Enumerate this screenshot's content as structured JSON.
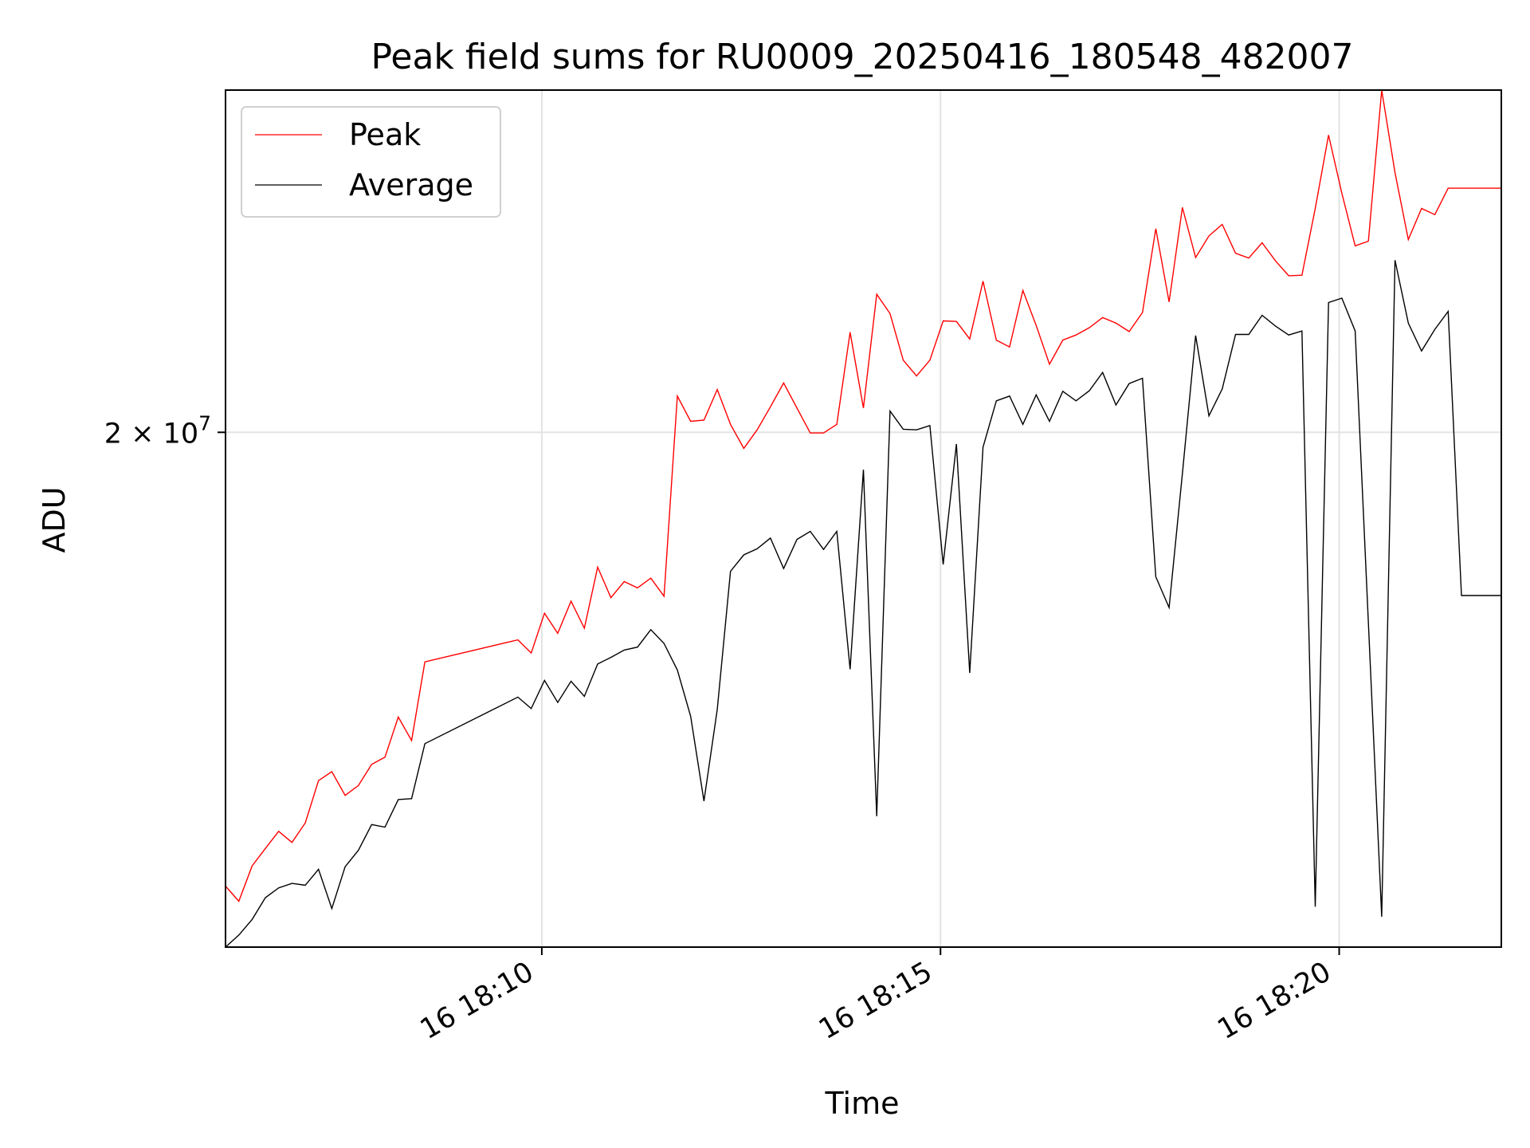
{
  "chart_data": {
    "type": "line",
    "title": "Peak field sums for RU0009_20250416_180548_482007",
    "xlabel": "Time",
    "ylabel": "ADU",
    "x_scale": "time",
    "y_scale": "log",
    "xlim": [
      "18:06:02",
      "18:22:02"
    ],
    "ylim": [
      13150000,
      26430000
    ],
    "x_ticks": [
      "16 18:10",
      "16 18:15",
      "16 18:20"
    ],
    "y_ticks": [
      {
        "value": 20000000,
        "base": "2 × 10",
        "exp": "7"
      }
    ],
    "grid": true,
    "legend": {
      "position": "top-left",
      "entries": [
        "Peak",
        "Average"
      ]
    },
    "series": [
      {
        "name": "Peak",
        "color": "#ff0000",
        "points": [
          [
            "18:06:02",
            13820000
          ],
          [
            "18:06:12",
            13650000
          ],
          [
            "18:06:22",
            14050000
          ],
          [
            "18:06:32",
            14250000
          ],
          [
            "18:06:42",
            14450000
          ],
          [
            "18:06:52",
            14320000
          ],
          [
            "18:07:02",
            14550000
          ],
          [
            "18:07:12",
            15060000
          ],
          [
            "18:07:22",
            15170000
          ],
          [
            "18:07:32",
            14880000
          ],
          [
            "18:07:42",
            15000000
          ],
          [
            "18:07:52",
            15260000
          ],
          [
            "18:08:02",
            15350000
          ],
          [
            "18:08:12",
            15860000
          ],
          [
            "18:08:22",
            15560000
          ],
          [
            "18:08:32",
            16590000
          ],
          [
            "18:09:42",
            16890000
          ],
          [
            "18:09:52",
            16710000
          ],
          [
            "18:10:02",
            17260000
          ],
          [
            "18:10:12",
            16980000
          ],
          [
            "18:10:22",
            17430000
          ],
          [
            "18:10:32",
            17050000
          ],
          [
            "18:10:42",
            17920000
          ],
          [
            "18:10:52",
            17480000
          ],
          [
            "18:11:02",
            17710000
          ],
          [
            "18:11:12",
            17620000
          ],
          [
            "18:11:22",
            17760000
          ],
          [
            "18:11:32",
            17500000
          ],
          [
            "18:11:42",
            20600000
          ],
          [
            "18:11:52",
            20180000
          ],
          [
            "18:12:02",
            20200000
          ],
          [
            "18:12:12",
            20710000
          ],
          [
            "18:12:22",
            20130000
          ],
          [
            "18:12:32",
            19740000
          ],
          [
            "18:12:42",
            20040000
          ],
          [
            "18:12:52",
            20420000
          ],
          [
            "18:13:02",
            20820000
          ],
          [
            "18:13:12",
            20400000
          ],
          [
            "18:13:22",
            19990000
          ],
          [
            "18:13:32",
            19990000
          ],
          [
            "18:13:42",
            20130000
          ],
          [
            "18:13:52",
            21700000
          ],
          [
            "18:14:02",
            20400000
          ],
          [
            "18:14:12",
            22380000
          ],
          [
            "18:14:22",
            22030000
          ],
          [
            "18:14:32",
            21210000
          ],
          [
            "18:14:42",
            20940000
          ],
          [
            "18:14:52",
            21210000
          ],
          [
            "18:15:02",
            21900000
          ],
          [
            "18:15:12",
            21890000
          ],
          [
            "18:15:22",
            21580000
          ],
          [
            "18:15:32",
            22620000
          ],
          [
            "18:15:42",
            21560000
          ],
          [
            "18:15:52",
            21440000
          ],
          [
            "18:16:02",
            22450000
          ],
          [
            "18:16:12",
            21820000
          ],
          [
            "18:16:22",
            21140000
          ],
          [
            "18:16:32",
            21560000
          ],
          [
            "18:16:42",
            21650000
          ],
          [
            "18:16:52",
            21780000
          ],
          [
            "18:17:02",
            21960000
          ],
          [
            "18:17:12",
            21860000
          ],
          [
            "18:17:22",
            21710000
          ],
          [
            "18:17:32",
            22050000
          ],
          [
            "18:17:42",
            23610000
          ],
          [
            "18:17:52",
            22240000
          ],
          [
            "18:18:02",
            24020000
          ],
          [
            "18:18:12",
            23060000
          ],
          [
            "18:18:22",
            23470000
          ],
          [
            "18:18:32",
            23690000
          ],
          [
            "18:18:42",
            23140000
          ],
          [
            "18:18:52",
            23050000
          ],
          [
            "18:19:02",
            23340000
          ],
          [
            "18:19:12",
            23000000
          ],
          [
            "18:19:22",
            22720000
          ],
          [
            "18:19:32",
            22730000
          ],
          [
            "18:19:42",
            24000000
          ],
          [
            "18:19:52",
            25480000
          ],
          [
            "18:20:02",
            24300000
          ],
          [
            "18:20:12",
            23280000
          ],
          [
            "18:20:22",
            23370000
          ],
          [
            "18:20:32",
            26430000
          ],
          [
            "18:20:42",
            24710000
          ],
          [
            "18:20:52",
            23400000
          ],
          [
            "18:21:02",
            24000000
          ],
          [
            "18:21:12",
            23880000
          ],
          [
            "18:21:22",
            24400000
          ],
          [
            "18:21:32",
            24400000
          ],
          [
            "18:22:02",
            24400000
          ]
        ]
      },
      {
        "name": "Average",
        "color": "#000000",
        "points": [
          [
            "18:06:02",
            13150000
          ],
          [
            "18:06:12",
            13280000
          ],
          [
            "18:06:22",
            13450000
          ],
          [
            "18:06:32",
            13690000
          ],
          [
            "18:06:42",
            13800000
          ],
          [
            "18:06:52",
            13850000
          ],
          [
            "18:07:02",
            13830000
          ],
          [
            "18:07:12",
            14010000
          ],
          [
            "18:07:22",
            13570000
          ],
          [
            "18:07:32",
            14040000
          ],
          [
            "18:07:42",
            14230000
          ],
          [
            "18:07:52",
            14530000
          ],
          [
            "18:08:02",
            14500000
          ],
          [
            "18:08:12",
            14830000
          ],
          [
            "18:08:22",
            14840000
          ],
          [
            "18:08:32",
            15520000
          ],
          [
            "18:09:42",
            16120000
          ],
          [
            "18:09:52",
            15970000
          ],
          [
            "18:10:02",
            16340000
          ],
          [
            "18:10:12",
            16050000
          ],
          [
            "18:10:22",
            16330000
          ],
          [
            "18:10:32",
            16130000
          ],
          [
            "18:10:42",
            16560000
          ],
          [
            "18:10:52",
            16650000
          ],
          [
            "18:11:02",
            16750000
          ],
          [
            "18:11:12",
            16790000
          ],
          [
            "18:11:22",
            17030000
          ],
          [
            "18:11:32",
            16840000
          ],
          [
            "18:11:42",
            16480000
          ],
          [
            "18:11:52",
            15870000
          ],
          [
            "18:12:02",
            14810000
          ],
          [
            "18:12:12",
            15960000
          ],
          [
            "18:12:22",
            17860000
          ],
          [
            "18:12:32",
            18100000
          ],
          [
            "18:12:42",
            18190000
          ],
          [
            "18:12:52",
            18350000
          ],
          [
            "18:13:02",
            17900000
          ],
          [
            "18:13:12",
            18330000
          ],
          [
            "18:13:22",
            18450000
          ],
          [
            "18:13:32",
            18180000
          ],
          [
            "18:13:42",
            18450000
          ],
          [
            "18:13:52",
            16490000
          ],
          [
            "18:14:02",
            19400000
          ],
          [
            "18:14:12",
            14630000
          ],
          [
            "18:14:22",
            20350000
          ],
          [
            "18:14:32",
            20050000
          ],
          [
            "18:14:42",
            20040000
          ],
          [
            "18:14:52",
            20110000
          ],
          [
            "18:15:02",
            17960000
          ],
          [
            "18:15:12",
            19810000
          ],
          [
            "18:15:22",
            16440000
          ],
          [
            "18:15:32",
            19760000
          ],
          [
            "18:15:42",
            20520000
          ],
          [
            "18:15:52",
            20600000
          ],
          [
            "18:16:02",
            20130000
          ],
          [
            "18:16:12",
            20620000
          ],
          [
            "18:16:22",
            20180000
          ],
          [
            "18:16:32",
            20680000
          ],
          [
            "18:16:42",
            20520000
          ],
          [
            "18:16:52",
            20690000
          ],
          [
            "18:17:02",
            21000000
          ],
          [
            "18:17:12",
            20450000
          ],
          [
            "18:17:22",
            20810000
          ],
          [
            "18:17:32",
            20900000
          ],
          [
            "18:17:42",
            17780000
          ],
          [
            "18:17:52",
            17340000
          ],
          [
            "18:18:02",
            19340000
          ],
          [
            "18:18:12",
            21640000
          ],
          [
            "18:18:22",
            20270000
          ],
          [
            "18:18:32",
            20720000
          ],
          [
            "18:18:42",
            21660000
          ],
          [
            "18:18:52",
            21660000
          ],
          [
            "18:19:02",
            22000000
          ],
          [
            "18:19:12",
            21810000
          ],
          [
            "18:19:22",
            21650000
          ],
          [
            "18:19:32",
            21720000
          ],
          [
            "18:19:42",
            13590000
          ],
          [
            "18:19:52",
            22230000
          ],
          [
            "18:20:02",
            22310000
          ],
          [
            "18:20:12",
            21720000
          ],
          [
            "18:20:32",
            13480000
          ],
          [
            "18:20:42",
            23010000
          ],
          [
            "18:20:52",
            21860000
          ],
          [
            "18:21:02",
            21370000
          ],
          [
            "18:21:12",
            21750000
          ],
          [
            "18:21:22",
            22070000
          ],
          [
            "18:21:32",
            17510000
          ],
          [
            "18:22:02",
            17510000
          ]
        ]
      }
    ]
  }
}
